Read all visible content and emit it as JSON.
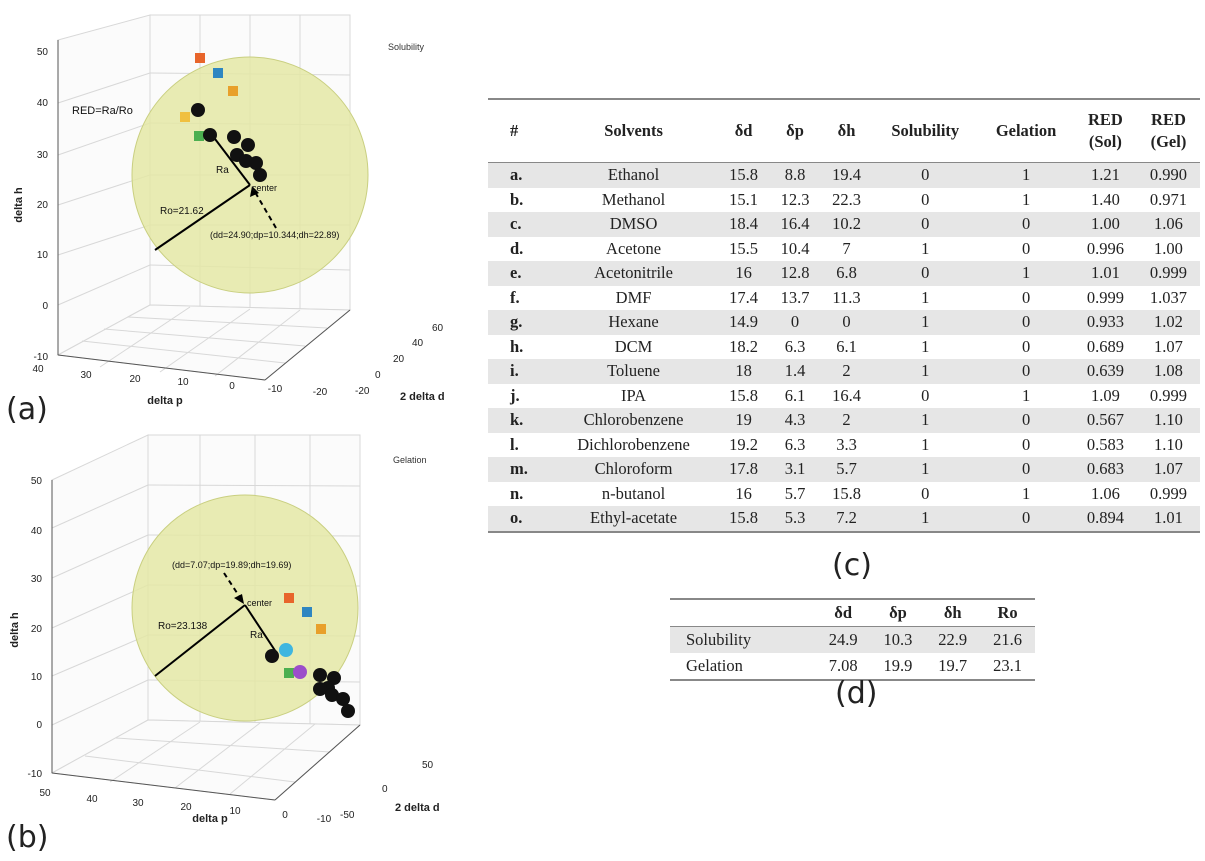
{
  "panel_a": {
    "label": "(a)",
    "corner_title": "Solubility",
    "red_formula": "RED=Ra/Ro",
    "ro_label": "Ro=21.62",
    "ra_label": "Ra",
    "center_label": "center",
    "center_coords": "(d<sub>d</sub>=24.90;d<sub>p</sub>=10.344;d<sub>h</sub>=22.89)",
    "center_coords_text": "(dd=24.90;dp=10.344;dh=22.89)",
    "ylabel": "delta h",
    "xlabel": "delta p",
    "zlabel": "2 delta d",
    "yticks": [
      "50",
      "40",
      "30",
      "20",
      "10",
      "0",
      "-10"
    ],
    "xticks": [
      "40",
      "30",
      "20",
      "10",
      "0",
      "-10",
      "-20"
    ],
    "zticks": [
      "-20",
      "0",
      "20",
      "40",
      "60"
    ]
  },
  "panel_b": {
    "label": "(b)",
    "corner_title": "Gelation",
    "ro_label": "Ro=23.138",
    "ra_label": "Ra",
    "center_label": "center",
    "center_coords_text": "(dd=7.07;dp=19.89;dh=19.69)",
    "ylabel": "delta h",
    "xlabel": "delta p",
    "zlabel": "2 delta d",
    "yticks": [
      "50",
      "40",
      "30",
      "20",
      "10",
      "0",
      "-10"
    ],
    "xticks": [
      "50",
      "40",
      "30",
      "20",
      "10",
      "0",
      "-10"
    ],
    "zticks": [
      "-50",
      "0",
      "50"
    ]
  },
  "panel_c": {
    "label": "(c)",
    "headers": [
      "#",
      "Solvents",
      "δd",
      "δp",
      "δh",
      "Solubility",
      "Gelation",
      "RED\n(Sol)",
      "RED\n(Gel)"
    ],
    "rows": [
      [
        "a.",
        "Ethanol",
        "15.8",
        "8.8",
        "19.4",
        "0",
        "1",
        "1.21",
        "0.990"
      ],
      [
        "b.",
        "Methanol",
        "15.1",
        "12.3",
        "22.3",
        "0",
        "1",
        "1.40",
        "0.971"
      ],
      [
        "c.",
        "DMSO",
        "18.4",
        "16.4",
        "10.2",
        "0",
        "0",
        "1.00",
        "1.06"
      ],
      [
        "d.",
        "Acetone",
        "15.5",
        "10.4",
        "7",
        "1",
        "0",
        "0.996",
        "1.00"
      ],
      [
        "e.",
        "Acetonitrile",
        "16",
        "12.8",
        "6.8",
        "0",
        "1",
        "1.01",
        "0.999"
      ],
      [
        "f.",
        "DMF",
        "17.4",
        "13.7",
        "11.3",
        "1",
        "0",
        "0.999",
        "1.037"
      ],
      [
        "g.",
        "Hexane",
        "14.9",
        "0",
        "0",
        "1",
        "0",
        "0.933",
        "1.02"
      ],
      [
        "h.",
        "DCM",
        "18.2",
        "6.3",
        "6.1",
        "1",
        "0",
        "0.689",
        "1.07"
      ],
      [
        "i.",
        "Toluene",
        "18",
        "1.4",
        "2",
        "1",
        "0",
        "0.639",
        "1.08"
      ],
      [
        "j.",
        "IPA",
        "15.8",
        "6.1",
        "16.4",
        "0",
        "1",
        "1.09",
        "0.999"
      ],
      [
        "k.",
        "Chlorobenzene",
        "19",
        "4.3",
        "2",
        "1",
        "0",
        "0.567",
        "1.10"
      ],
      [
        "l.",
        "Dichlorobenzene",
        "19.2",
        "6.3",
        "3.3",
        "1",
        "0",
        "0.583",
        "1.10"
      ],
      [
        "m.",
        "Chloroform",
        "17.8",
        "3.1",
        "5.7",
        "1",
        "0",
        "0.683",
        "1.07"
      ],
      [
        "n.",
        "n-butanol",
        "16",
        "5.7",
        "15.8",
        "0",
        "1",
        "1.06",
        "0.999"
      ],
      [
        "o.",
        "Ethyl-acetate",
        "15.8",
        "5.3",
        "7.2",
        "1",
        "0",
        "0.894",
        "1.01"
      ]
    ]
  },
  "panel_d": {
    "label": "(d)",
    "headers": [
      "",
      "δd",
      "δp",
      "δh",
      "Ro"
    ],
    "rows": [
      [
        "Solubility",
        "24.9",
        "10.3",
        "22.9",
        "21.6"
      ],
      [
        "Gelation",
        "7.08",
        "19.9",
        "19.7",
        "23.1"
      ]
    ]
  },
  "colors": {
    "sphere_fill": "#e4e8a6",
    "sphere_edge": "#c9cf80",
    "point_black": "#111111",
    "sq_orange": "#e8652b",
    "sq_blue": "#2e86c1",
    "sq_amber": "#e8a02b",
    "sq_yellow": "#f0c040",
    "sq_green": "#4caf50",
    "circle_cyan": "#3fb6e0",
    "circle_purple": "#9b4dca"
  },
  "chart_data": [
    {
      "type": "scatter",
      "title": "Solubility",
      "xlabel": "delta p",
      "ylabel": "delta h",
      "zlabel": "2 delta d",
      "center": {
        "dd": 24.9,
        "dp": 10.344,
        "dh": 22.89
      },
      "Ro": 21.62,
      "points": [
        "a",
        "b",
        "c",
        "d",
        "e",
        "f",
        "g",
        "h",
        "i",
        "j",
        "k",
        "l",
        "m",
        "n",
        "o"
      ]
    },
    {
      "type": "scatter",
      "title": "Gelation",
      "xlabel": "delta p",
      "ylabel": "delta h",
      "zlabel": "2 delta d",
      "center": {
        "dd": 7.07,
        "dp": 19.89,
        "dh": 19.69
      },
      "Ro": 23.138,
      "points": [
        "a",
        "b",
        "c",
        "d",
        "e",
        "f",
        "g",
        "h",
        "i",
        "j",
        "k",
        "l",
        "m",
        "n",
        "o"
      ]
    }
  ]
}
